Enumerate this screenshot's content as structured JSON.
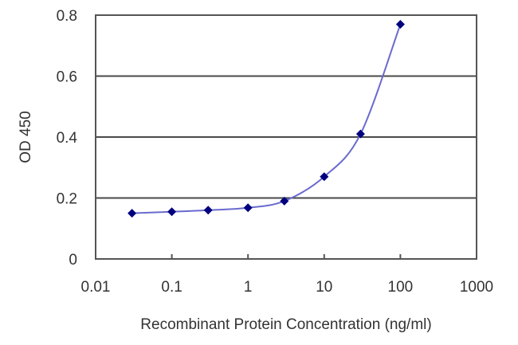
{
  "chart_data": {
    "type": "line",
    "title": "",
    "xlabel": "Recombinant Protein Concentration (ng/ml)",
    "ylabel": "OD 450",
    "xscale": "log",
    "xlim": [
      0.01,
      1000
    ],
    "ylim": [
      0,
      0.8
    ],
    "x_ticks": [
      "0.01",
      "0.1",
      "1",
      "10",
      "100",
      "1000"
    ],
    "x_tick_values": [
      0.01,
      0.1,
      1,
      10,
      100,
      1000
    ],
    "y_ticks": [
      "0",
      "0.2",
      "0.4",
      "0.6",
      "0.8"
    ],
    "y_tick_values": [
      0,
      0.2,
      0.4,
      0.6,
      0.8
    ],
    "grid": {
      "horizontal": true,
      "vertical": false
    },
    "legend": null,
    "series": [
      {
        "name": "OD 450",
        "x": [
          0.03,
          0.1,
          0.3,
          1,
          3,
          10,
          30,
          100
        ],
        "values": [
          0.15,
          0.155,
          0.16,
          0.168,
          0.19,
          0.27,
          0.41,
          0.77
        ],
        "marker": "diamond",
        "marker_color": "#00007f",
        "line_color": "#6a6acf",
        "smooth": true
      }
    ]
  },
  "colors": {
    "background": "#ffffff",
    "axis": "#555555",
    "grid": "#4a4a4a",
    "text": "#333333"
  }
}
